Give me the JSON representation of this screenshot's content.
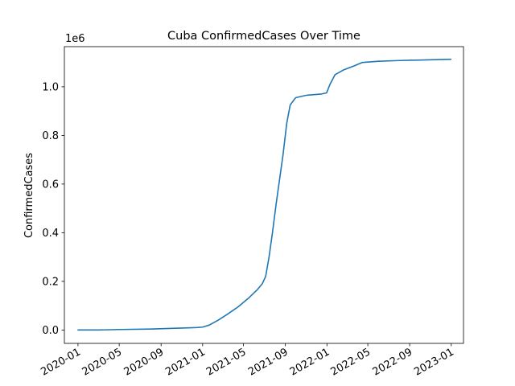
{
  "chart_data": {
    "type": "line",
    "title": "Cuba  ConfirmedCases Over Time",
    "xlabel": "",
    "ylabel": "ConfirmedCases",
    "y_multiplier_label": "1e6",
    "xlim": [
      "2019-11-22",
      "2023-02-06"
    ],
    "ylim": [
      -0.055,
      1.165
    ],
    "y_ticks": [
      0.0,
      0.2,
      0.4,
      0.6,
      0.8,
      1.0
    ],
    "y_tick_labels": [
      "0.0",
      "0.2",
      "0.4",
      "0.6",
      "0.8",
      "1.0"
    ],
    "x_ticks": [
      "2020-01-01",
      "2020-05-01",
      "2020-09-01",
      "2021-01-01",
      "2021-05-01",
      "2021-09-01",
      "2022-01-01",
      "2022-05-01",
      "2022-09-01",
      "2023-01-01"
    ],
    "x_tick_labels": [
      "2020-01",
      "2020-05",
      "2020-09",
      "2021-01",
      "2021-05",
      "2021-09",
      "2022-01",
      "2022-05",
      "2022-09",
      "2023-01"
    ],
    "grid": false,
    "colors": {
      "line": "#1f77b4"
    },
    "series": [
      {
        "x": [
          "2020-01-01",
          "2020-03-01",
          "2020-05-01",
          "2020-08-01",
          "2020-11-01",
          "2020-12-15",
          "2021-01-01",
          "2021-01-20",
          "2021-02-15",
          "2021-03-15",
          "2021-04-15",
          "2021-05-15",
          "2021-06-10",
          "2021-06-25",
          "2021-07-05",
          "2021-07-15",
          "2021-07-25",
          "2021-08-05",
          "2021-08-15",
          "2021-08-25",
          "2021-09-05",
          "2021-09-15",
          "2021-10-01",
          "2021-11-01",
          "2021-12-15",
          "2021-12-31",
          "2022-01-10",
          "2022-01-25",
          "2022-02-20",
          "2022-03-20",
          "2022-04-15",
          "2022-06-01",
          "2022-08-01",
          "2022-10-01",
          "2022-12-31"
        ],
        "y": [
          0.0,
          0.0,
          0.002,
          0.004,
          0.008,
          0.01,
          0.012,
          0.02,
          0.04,
          0.065,
          0.095,
          0.13,
          0.165,
          0.19,
          0.22,
          0.3,
          0.4,
          0.52,
          0.62,
          0.72,
          0.85,
          0.925,
          0.955,
          0.965,
          0.97,
          0.975,
          1.01,
          1.05,
          1.07,
          1.085,
          1.1,
          1.105,
          1.108,
          1.11,
          1.113
        ]
      }
    ]
  }
}
